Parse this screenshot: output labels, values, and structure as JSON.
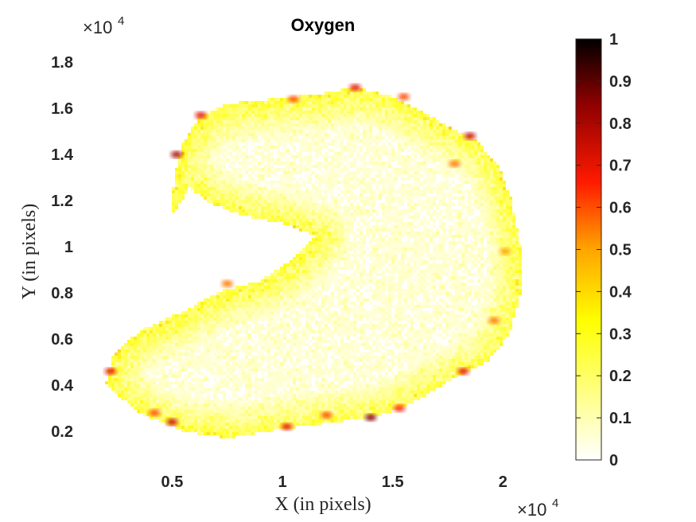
{
  "chart_data": {
    "type": "heatmap",
    "title": "Oxygen",
    "xlabel": "X (in pixels)",
    "ylabel": "Y (in pixels)",
    "x_multiplier": "×10",
    "x_exponent": "4",
    "y_multiplier": "×10",
    "y_exponent": "4",
    "xlim": [
      800,
      22800
    ],
    "ylim": [
      0,
      18800
    ],
    "x_ticks": [
      5000,
      10000,
      15000,
      20000
    ],
    "x_tick_labels": [
      "0.5",
      "1",
      "1.5",
      "2"
    ],
    "y_ticks": [
      2000,
      4000,
      6000,
      8000,
      10000,
      12000,
      14000,
      16000,
      18000
    ],
    "y_tick_labels": [
      "0.2",
      "0.4",
      "0.6",
      "0.8",
      "1",
      "1.2",
      "1.4",
      "1.6",
      "1.8"
    ],
    "colormap": "hot (reversed)",
    "colorbar": {
      "range": [
        0,
        1
      ],
      "ticks": [
        0,
        0.1,
        0.2,
        0.3,
        0.4,
        0.5,
        0.6,
        0.7,
        0.8,
        0.9,
        1
      ],
      "tick_labels": [
        "0",
        "0.1",
        "0.2",
        "0.3",
        "0.4",
        "0.5",
        "0.6",
        "0.7",
        "0.8",
        "0.9",
        "1"
      ]
    },
    "region_outline": [
      [
        4900,
        11300
      ],
      [
        5100,
        13000
      ],
      [
        5500,
        14500
      ],
      [
        6200,
        15600
      ],
      [
        7500,
        16200
      ],
      [
        9500,
        16400
      ],
      [
        11500,
        16600
      ],
      [
        13300,
        16900
      ],
      [
        15000,
        16500
      ],
      [
        16500,
        15800
      ],
      [
        17500,
        15200
      ],
      [
        18800,
        14600
      ],
      [
        19800,
        13500
      ],
      [
        20400,
        12000
      ],
      [
        20800,
        10000
      ],
      [
        20800,
        8000
      ],
      [
        20300,
        6200
      ],
      [
        19300,
        5000
      ],
      [
        17800,
        4300
      ],
      [
        16000,
        3300
      ],
      [
        14500,
        2700
      ],
      [
        12500,
        2400
      ],
      [
        10000,
        2100
      ],
      [
        7500,
        1700
      ],
      [
        5500,
        2000
      ],
      [
        3500,
        2800
      ],
      [
        2000,
        4000
      ],
      [
        2300,
        5300
      ],
      [
        3600,
        6400
      ],
      [
        5500,
        7200
      ],
      [
        7300,
        8100
      ],
      [
        9000,
        8500
      ],
      [
        10500,
        9500
      ],
      [
        11500,
        10500
      ],
      [
        10000,
        11000
      ],
      [
        8000,
        11400
      ],
      [
        6500,
        12000
      ],
      [
        5800,
        12600
      ],
      [
        5300,
        11800
      ]
    ],
    "hotspots": [
      {
        "x": 5200,
        "y": 14000,
        "value": 0.8
      },
      {
        "x": 6300,
        "y": 15700,
        "value": 0.7
      },
      {
        "x": 10500,
        "y": 16400,
        "value": 0.6
      },
      {
        "x": 13300,
        "y": 16900,
        "value": 0.7
      },
      {
        "x": 15500,
        "y": 16500,
        "value": 0.6
      },
      {
        "x": 18500,
        "y": 14800,
        "value": 0.75
      },
      {
        "x": 17800,
        "y": 13600,
        "value": 0.55
      },
      {
        "x": 20100,
        "y": 9800,
        "value": 0.5
      },
      {
        "x": 19600,
        "y": 6800,
        "value": 0.55
      },
      {
        "x": 18200,
        "y": 4600,
        "value": 0.7
      },
      {
        "x": 15300,
        "y": 3000,
        "value": 0.65
      },
      {
        "x": 14000,
        "y": 2600,
        "value": 0.85
      },
      {
        "x": 12000,
        "y": 2700,
        "value": 0.6
      },
      {
        "x": 10200,
        "y": 2200,
        "value": 0.7
      },
      {
        "x": 5000,
        "y": 2400,
        "value": 0.75
      },
      {
        "x": 4200,
        "y": 2800,
        "value": 0.6
      },
      {
        "x": 2200,
        "y": 4600,
        "value": 0.7
      },
      {
        "x": 7500,
        "y": 8400,
        "value": 0.55
      }
    ]
  }
}
